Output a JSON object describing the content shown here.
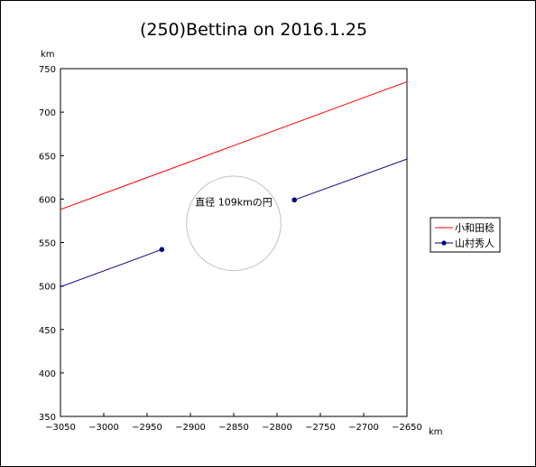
{
  "chart_data": {
    "type": "line",
    "title": "(250)Bettina on 2016.1.25",
    "xlabel": "km",
    "ylabel": "km",
    "xlim": [
      -3050,
      -2650
    ],
    "ylim": [
      350,
      750
    ],
    "xticks": [
      -3050,
      -3000,
      -2950,
      -2900,
      -2850,
      -2800,
      -2750,
      -2700,
      -2650
    ],
    "yticks": [
      350,
      400,
      450,
      500,
      550,
      600,
      650,
      700,
      750
    ],
    "xtick_labels": [
      "−3050",
      "−3000",
      "−2950",
      "−2900",
      "−2850",
      "−2800",
      "−2750",
      "−2700",
      "−2650"
    ],
    "ytick_labels": [
      "350",
      "400",
      "450",
      "500",
      "550",
      "600",
      "650",
      "700",
      "750"
    ],
    "grid": false,
    "legend": "right",
    "series": [
      {
        "name": "小和田稔",
        "color": "#ff0000",
        "markers": false,
        "segments": [
          [
            [
              -3050,
              588
            ],
            [
              -2650,
              735
            ]
          ]
        ]
      },
      {
        "name": "山村秀人",
        "color": "#000080",
        "markers": true,
        "segments": [
          [
            [
              -3050,
              499
            ],
            [
              -2933,
              542
            ]
          ],
          [
            [
              -2780,
              599
            ],
            [
              -2650,
              646
            ]
          ]
        ]
      }
    ],
    "circle": {
      "label": "直径 109kmの円",
      "center": [
        -2850,
        572
      ],
      "diameter": 109,
      "color": "#c0c0c0"
    }
  }
}
